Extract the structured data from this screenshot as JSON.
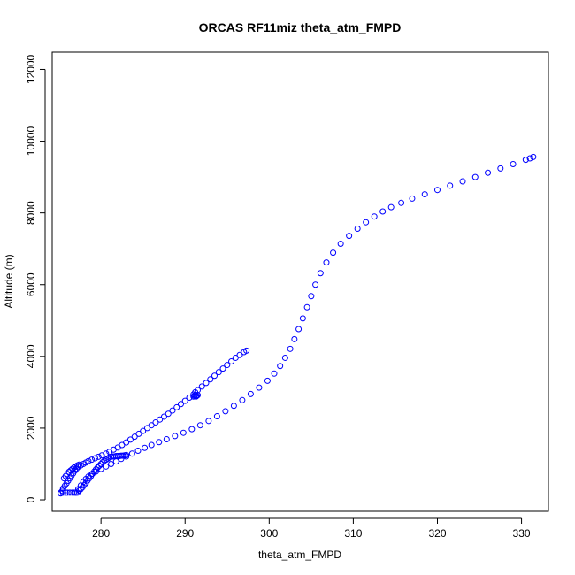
{
  "chart_data": {
    "type": "scatter",
    "title": "ORCAS RF11miz theta_atm_FMPD",
    "xlabel": "theta_atm_FMPD",
    "ylabel": "Altitude (m)",
    "xlim": [
      274.2,
      333.2
    ],
    "ylim": [
      -320,
      12480
    ],
    "xticks": [
      280,
      290,
      300,
      310,
      320,
      330
    ],
    "xtick_labels": [
      "280",
      "290",
      "300",
      "310",
      "320",
      "330"
    ],
    "yticks": [
      0,
      2000,
      4000,
      6000,
      8000,
      10000,
      12000
    ],
    "ytick_labels": [
      "0",
      "2000",
      "4000",
      "6000",
      "8000",
      "10000",
      "12000"
    ],
    "grid": false,
    "marker": "open-circle",
    "color": "#0000ff",
    "series": [
      {
        "x": [
          275.2,
          275.4,
          275.5,
          275.7,
          275.9,
          276.1,
          276.3,
          276.5,
          276.7,
          276.9,
          277.1,
          277.3,
          277.6,
          277.9,
          278.2,
          278.5,
          278.9,
          279.3,
          279.7,
          280.1,
          280.6,
          281.0,
          281.5,
          282.0,
          282.5,
          283.0,
          283.5,
          284.0,
          284.5,
          285.0,
          285.5,
          286.0,
          286.5,
          287.0,
          287.5,
          288.0,
          288.5,
          289.0,
          289.5,
          290.0,
          290.5,
          291.0,
          291.2,
          291.5,
          292.0,
          292.5,
          293.0,
          293.5,
          294.0,
          294.5,
          295.0,
          295.5,
          296.0,
          296.5,
          297.0,
          297.3
        ],
        "y": [
          180,
          250,
          320,
          390,
          460,
          530,
          600,
          670,
          740,
          810,
          870,
          920,
          960,
          1000,
          1040,
          1080,
          1120,
          1160,
          1200,
          1240,
          1290,
          1340,
          1400,
          1460,
          1530,
          1600,
          1680,
          1760,
          1840,
          1920,
          2000,
          2080,
          2160,
          2240,
          2320,
          2400,
          2490,
          2580,
          2670,
          2760,
          2850,
          2940,
          3000,
          3060,
          3160,
          3260,
          3360,
          3460,
          3560,
          3660,
          3760,
          3860,
          3960,
          4040,
          4120,
          4160
        ]
      },
      {
        "x": [
          277.0,
          277.3,
          277.6,
          277.9,
          278.2,
          278.5,
          278.9,
          279.4,
          280.0,
          280.6,
          281.2,
          281.8,
          282.4,
          283.0,
          283.7,
          284.4,
          285.2,
          286.0,
          286.9,
          287.8,
          288.8,
          289.8,
          290.8,
          291.8,
          292.8,
          293.8,
          294.8,
          295.8,
          296.8,
          297.8,
          298.8,
          299.8,
          300.6,
          301.3,
          301.9,
          302.5,
          303.0,
          303.5,
          304.0,
          304.5,
          305.0,
          305.5,
          306.1,
          306.8,
          307.6,
          308.5,
          309.5,
          310.5,
          311.5,
          312.5,
          313.5,
          314.5,
          315.7,
          317.0,
          318.5,
          320.0,
          321.5,
          323.0,
          324.5,
          326.0,
          327.5,
          329.0,
          330.5,
          331.0,
          331.4
        ],
        "y": [
          200,
          300,
          400,
          500,
          580,
          650,
          720,
          790,
          860,
          930,
          1000,
          1070,
          1140,
          1210,
          1290,
          1370,
          1450,
          1530,
          1610,
          1690,
          1780,
          1870,
          1970,
          2080,
          2200,
          2330,
          2470,
          2620,
          2780,
          2950,
          3130,
          3320,
          3520,
          3730,
          3960,
          4210,
          4480,
          4760,
          5060,
          5370,
          5680,
          6000,
          6320,
          6620,
          6890,
          7140,
          7360,
          7560,
          7740,
          7900,
          8040,
          8160,
          8280,
          8400,
          8520,
          8640,
          8760,
          8880,
          9000,
          9120,
          9240,
          9360,
          9480,
          9520,
          9560
        ]
      },
      {
        "x": [
          275.2,
          275.5,
          275.8,
          276.0,
          276.3,
          276.6,
          276.8,
          277.0,
          277.2,
          277.4,
          277.6,
          277.8,
          278.0,
          278.2,
          278.4,
          278.6,
          278.8,
          279.0,
          279.2,
          279.4,
          279.6,
          279.8,
          280.0,
          280.2,
          280.4,
          280.6,
          280.8,
          281.0,
          281.2,
          281.4,
          281.6,
          281.8,
          282.0,
          282.2,
          282.4,
          282.6,
          282.8,
          283.0
        ],
        "y": [
          200,
          200,
          200,
          200,
          200,
          200,
          200,
          200,
          200,
          260,
          300,
          350,
          410,
          470,
          540,
          600,
          660,
          730,
          790,
          850,
          900,
          950,
          1000,
          1050,
          1090,
          1120,
          1150,
          1180,
          1200,
          1210,
          1210,
          1220,
          1220,
          1220,
          1230,
          1230,
          1240,
          1250
        ]
      },
      {
        "x": [
          275.6,
          275.8,
          276.0,
          276.2,
          276.4,
          276.6,
          276.8,
          277.0,
          277.2,
          277.4
        ],
        "y": [
          600,
          660,
          720,
          780,
          820,
          860,
          900,
          930,
          960,
          980
        ]
      },
      {
        "x": [
          291.0,
          291.1,
          291.2,
          291.3,
          291.4,
          291.5
        ],
        "y": [
          2880,
          2900,
          2920,
          2880,
          2900,
          2920
        ]
      }
    ]
  }
}
